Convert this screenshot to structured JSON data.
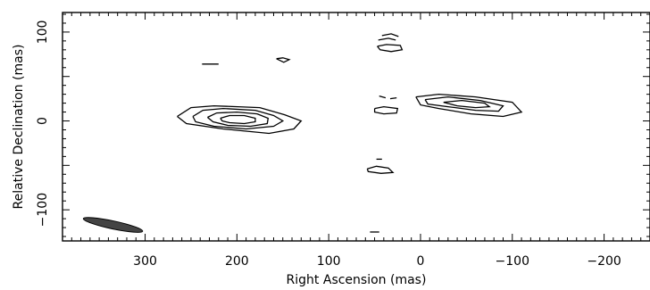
{
  "chart_data": {
    "type": "contour",
    "xlabel": "Right Ascension  (mas)",
    "ylabel": "Relative Declination  (mas)",
    "xlim": [
      390,
      -250
    ],
    "ylim": [
      -135,
      122
    ],
    "x_ticks": [
      300,
      200,
      100,
      0,
      -100,
      -200
    ],
    "x_tick_labels": [
      "300",
      "200",
      "100",
      "0",
      "−100",
      "−200"
    ],
    "y_ticks": [
      100,
      0,
      -100
    ],
    "y_tick_labels": [
      "100",
      "0",
      "−100"
    ],
    "grid": false,
    "components": [
      {
        "name": "",
        "center": [
          195,
          2
        ],
        "contours": [
          [
            [
              265,
              5
            ],
            [
              250,
              15
            ],
            [
              225,
              17
            ],
            [
              175,
              15
            ],
            [
              148,
              7
            ],
            [
              130,
              0
            ],
            [
              138,
              -9
            ],
            [
              165,
              -14
            ],
            [
              215,
              -9
            ],
            [
              255,
              -3
            ],
            [
              265,
              5
            ]
          ],
          [
            [
              248,
              5
            ],
            [
              237,
              12
            ],
            [
              215,
              14
            ],
            [
              180,
              12
            ],
            [
              160,
              6
            ],
            [
              150,
              0
            ],
            [
              160,
              -6
            ],
            [
              190,
              -9
            ],
            [
              225,
              -6
            ],
            [
              245,
              -1
            ],
            [
              248,
              5
            ]
          ],
          [
            [
              232,
              4
            ],
            [
              222,
              9
            ],
            [
              200,
              10
            ],
            [
              178,
              8
            ],
            [
              166,
              3
            ],
            [
              167,
              -3
            ],
            [
              185,
              -6
            ],
            [
              210,
              -5
            ],
            [
              226,
              -1
            ],
            [
              232,
              4
            ]
          ],
          [
            [
              218,
              3
            ],
            [
              208,
              6
            ],
            [
              192,
              6
            ],
            [
              180,
              3
            ],
            [
              180,
              -1
            ],
            [
              192,
              -3
            ],
            [
              208,
              -2
            ],
            [
              216,
              0
            ],
            [
              218,
              3
            ]
          ]
        ]
      },
      {
        "name": "",
        "center": [
          -55,
          18
        ],
        "contours": [
          [
            [
              5,
              27
            ],
            [
              -20,
              30
            ],
            [
              -60,
              27
            ],
            [
              -100,
              21
            ],
            [
              -110,
              10
            ],
            [
              -90,
              5
            ],
            [
              -55,
              8
            ],
            [
              -20,
              14
            ],
            [
              0,
              18
            ],
            [
              5,
              27
            ]
          ],
          [
            [
              -5,
              24
            ],
            [
              -30,
              27
            ],
            [
              -65,
              23
            ],
            [
              -90,
              17
            ],
            [
              -85,
              11
            ],
            [
              -60,
              12
            ],
            [
              -30,
              16
            ],
            [
              -8,
              19
            ],
            [
              -5,
              24
            ]
          ],
          [
            [
              -25,
              21
            ],
            [
              -45,
              23
            ],
            [
              -70,
              20
            ],
            [
              -75,
              16
            ],
            [
              -60,
              15
            ],
            [
              -40,
              17
            ],
            [
              -25,
              21
            ]
          ]
        ]
      },
      {
        "name": "",
        "center": [
          35,
          85
        ],
        "contours": [
          [
            [
              47,
              84
            ],
            [
              37,
              86
            ],
            [
              22,
              85
            ],
            [
              20,
              80
            ],
            [
              32,
              78
            ],
            [
              44,
              80
            ],
            [
              47,
              84
            ]
          ],
          [
            [
              42,
              96
            ],
            [
              32,
              98
            ],
            [
              24,
              95
            ]
          ],
          [
            [
              46,
              91
            ],
            [
              35,
              93
            ],
            [
              27,
              91
            ]
          ]
        ]
      },
      {
        "name": "",
        "center": [
          38,
          12
        ],
        "contours": [
          [
            [
              50,
              14
            ],
            [
              40,
              16
            ],
            [
              25,
              14
            ],
            [
              26,
              9
            ],
            [
              40,
              8
            ],
            [
              50,
              10
            ],
            [
              50,
              14
            ]
          ],
          [
            [
              45,
              28
            ],
            [
              38,
              26
            ]
          ],
          [
            [
              33,
              25
            ],
            [
              26,
              26
            ]
          ]
        ]
      },
      {
        "name": "",
        "center": [
          45,
          -55
        ],
        "contours": [
          [
            [
              58,
              -54
            ],
            [
              48,
              -51
            ],
            [
              35,
              -53
            ],
            [
              30,
              -58
            ],
            [
              43,
              -59
            ],
            [
              57,
              -57
            ],
            [
              58,
              -54
            ]
          ],
          [
            [
              48,
              -43
            ],
            [
              42,
              -43
            ]
          ]
        ]
      },
      {
        "name": "",
        "center": [
          150,
          68
        ],
        "contours": [
          [
            [
              157,
              70
            ],
            [
              150,
              71
            ],
            [
              143,
              69
            ],
            [
              149,
              66
            ],
            [
              157,
              70
            ]
          ]
        ]
      },
      {
        "name": "",
        "center": [
          228,
          64
        ],
        "contours": [
          [
            [
              238,
              64
            ],
            [
              220,
              64
            ]
          ]
        ]
      },
      {
        "name": "",
        "center": [
          50,
          -125
        ],
        "contours": [
          [
            [
              55,
              -125
            ],
            [
              45,
              -125
            ]
          ]
        ]
      }
    ],
    "beam": {
      "filled": true,
      "center": [
        335,
        -117
      ],
      "major": 66,
      "minor": 9,
      "angle": -12
    }
  }
}
